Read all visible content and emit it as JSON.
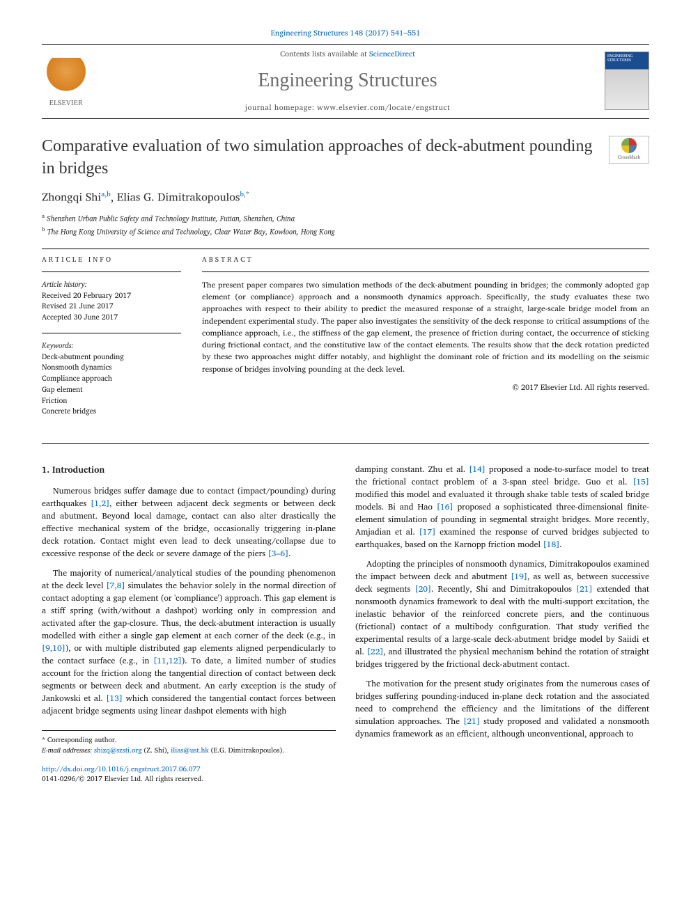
{
  "journal_ref": "Engineering Structures 148 (2017) 541–551",
  "contents_line_prefix": "Contents lists available at ",
  "contents_link": "ScienceDirect",
  "journal_name": "Engineering Structures",
  "homepage_prefix": "journal homepage: ",
  "homepage_url": "www.elsevier.com/locate/engstruct",
  "elsevier_label": "ELSEVIER",
  "cover_label": "ENGINEERING STRUCTURES",
  "crossmark_label": "CrossMark",
  "title": "Comparative evaluation of two simulation approaches of deck-abutment pounding in bridges",
  "authors_html": "Zhongqi Shi",
  "author1": "Zhongqi Shi",
  "author1_sup": "a,b",
  "author_sep": ", ",
  "author2": "Elias G. Dimitrakopoulos",
  "author2_sup": "b,",
  "star": "*",
  "aff_a_sup": "a",
  "aff_a": " Shenzhen Urban Public Safety and Technology Institute, Futian, Shenzhen, China",
  "aff_b_sup": "b",
  "aff_b": " The Hong Kong University of Science and Technology, Clear Water Bay, Kowloon, Hong Kong",
  "info_label": "article info",
  "abstract_label": "abstract",
  "history_head": "Article history:",
  "history_received": "Received 20 February 2017",
  "history_revised": "Revised 21 June 2017",
  "history_accepted": "Accepted 30 June 2017",
  "keywords_head": "Keywords:",
  "keywords": [
    "Deck-abutment pounding",
    "Nonsmooth dynamics",
    "Compliance approach",
    "Gap element",
    "Friction",
    "Concrete bridges"
  ],
  "abstract_text": "The present paper compares two simulation methods of the deck-abutment pounding in bridges; the commonly adopted gap element (or compliance) approach and a nonsmooth dynamics approach. Specifically, the study evaluates these two approaches with respect to their ability to predict the measured response of a straight, large-scale bridge model from an independent experimental study. The paper also investigates the sensitivity of the deck response to critical assumptions of the compliance approach, i.e., the stiffness of the gap element, the presence of friction during contact, the occurrence of sticking during frictional contact, and the constitutive law of the contact elements. The results show that the deck rotation predicted by these two approaches might differ notably, and highlight the dominant role of friction and its modelling on the seismic response of bridges involving pounding at the deck level.",
  "copyright": "© 2017 Elsevier Ltd. All rights reserved.",
  "section1_title": "1. Introduction",
  "para1": "Numerous bridges suffer damage due to contact (impact/pounding) during earthquakes [1,2], either between adjacent deck segments or between deck and abutment. Beyond local damage, contact can also alter drastically the effective mechanical system of the bridge, occasionally triggering in-plane deck rotation. Contact might even lead to deck unseating/collapse due to excessive response of the deck or severe damage of the piers [3–6].",
  "para2": "The majority of numerical/analytical studies of the pounding phenomenon at the deck level [7,8] simulates the behavior solely in the normal direction of contact adopting a gap element (or 'compliance') approach. This gap element is a stiff spring (with/without a dashpot) working only in compression and activated after the gap-closure. Thus, the deck-abutment interaction is usually modelled with either a single gap element at each corner of the deck (e.g., in [9,10]), or with multiple distributed gap elements aligned perpendicularly to the contact surface (e.g., in [11,12]). To date, a limited number of studies account for the friction along the tangential direction of contact between deck segments or between deck and abutment. An early exception is the study of Jankowski et al. [13] which considered the tangential contact forces between adjacent bridge segments using linear dashpot elements with high",
  "para3": "damping constant. Zhu et al. [14] proposed a node-to-surface model to treat the frictional contact problem of a 3-span steel bridge. Guo et al. [15] modified this model and evaluated it through shake table tests of scaled bridge models. Bi and Hao [16] proposed a sophisticated three-dimensional finite-element simulation of pounding in segmental straight bridges. More recently, Amjadian et al. [17] examined the response of curved bridges subjected to earthquakes, based on the Karnopp friction model [18].",
  "para4": "Adopting the principles of nonsmooth dynamics, Dimitrakopoulos examined the impact between deck and abutment [19], as well as, between successive deck segments [20]. Recently, Shi and Dimitrakopoulos [21] extended that nonsmooth dynamics framework to deal with the multi-support excitation, the inelastic behavior of the reinforced concrete piers, and the continuous (frictional) contact of a multibody configuration. That study verified the experimental results of a large-scale deck-abutment bridge model by Saiidi et al. [22], and illustrated the physical mechanism behind the rotation of straight bridges triggered by the frictional deck-abutment contact.",
  "para5": "The motivation for the present study originates from the numerous cases of bridges suffering pounding-induced in-plane deck rotation and the associated need to comprehend the efficiency and the limitations of the different simulation approaches. The [21] study proposed and validated a nonsmooth dynamics framework as an efficient, although unconventional, approach to",
  "corr_label": "* Corresponding author.",
  "email_label": "E-mail addresses: ",
  "email1": "shizq@szsti.org",
  "email1_who": " (Z. Shi), ",
  "email2": "ilias@ust.hk",
  "email2_who": " (E.G. Dimitrakopoulos).",
  "doi": "http://dx.doi.org/10.1016/j.engstruct.2017.06.077",
  "issn_line": "0141-0296/© 2017 Elsevier Ltd. All rights reserved."
}
